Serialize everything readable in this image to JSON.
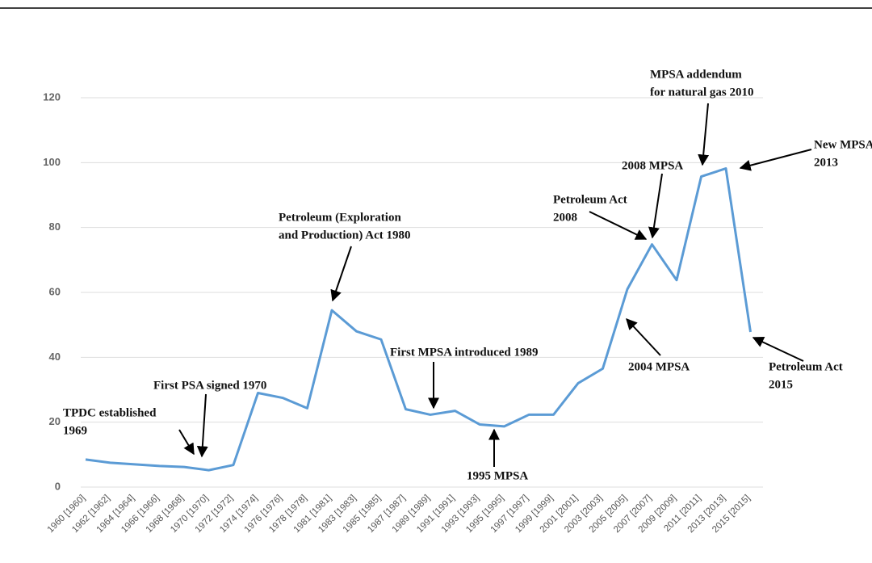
{
  "chart_data": {
    "type": "line",
    "categories": [
      "1960 [1960]",
      "1962 [1962]",
      "1964 [1964]",
      "1966 [1966]",
      "1968 [1968]",
      "1970 [1970]",
      "1972 [1972]",
      "1974 [1974]",
      "1976 [1976]",
      "1978 [1978]",
      "1981 [1981]",
      "1983 [1983]",
      "1985 [1985]",
      "1987 [1987]",
      "1989 [1989]",
      "1991 [1991]",
      "1993 [1993]",
      "1995 [1995]",
      "1997 [1997]",
      "1999 [1999]",
      "2001 [2001]",
      "2003 [2003]",
      "2005 [2005]",
      "2007 [2007]",
      "2009 [2009]",
      "2011 [2011]",
      "2013 [2013]",
      "2015 [2015]"
    ],
    "series": [
      {
        "color": "#5b9bd5",
        "values": [
          8.5,
          7.5,
          7,
          6.5,
          6.2,
          5.2,
          6.8,
          29,
          27.5,
          24.3,
          54.5,
          48,
          45.5,
          24,
          22.3,
          23.5,
          19.3,
          18.7,
          22.3,
          22.3,
          32,
          36.5,
          61,
          74.8,
          63.8,
          95.7,
          98.2,
          47.8
        ]
      }
    ],
    "ylim": [
      0,
      120
    ],
    "yticks": [
      0,
      20,
      40,
      60,
      80,
      100,
      120
    ],
    "grid": true,
    "annotations": [
      {
        "lines": [
          "TPDC established",
          "1969"
        ]
      },
      {
        "lines": [
          "First PSA signed 1970"
        ]
      },
      {
        "lines": [
          "Petroleum (Exploration",
          "and Production) Act 1980"
        ]
      },
      {
        "lines": [
          "First MPSA introduced 1989"
        ]
      },
      {
        "lines": [
          "1995 MPSA"
        ]
      },
      {
        "lines": [
          "2004 MPSA"
        ]
      },
      {
        "lines": [
          "Petroleum Act",
          "2008"
        ]
      },
      {
        "lines": [
          "2008 MPSA"
        ]
      },
      {
        "lines": [
          "MPSA addendum",
          "for natural gas 2010"
        ]
      },
      {
        "lines": [
          "New MPSA",
          "2013"
        ]
      },
      {
        "lines": [
          "Petroleum Act",
          "2015"
        ]
      }
    ]
  }
}
